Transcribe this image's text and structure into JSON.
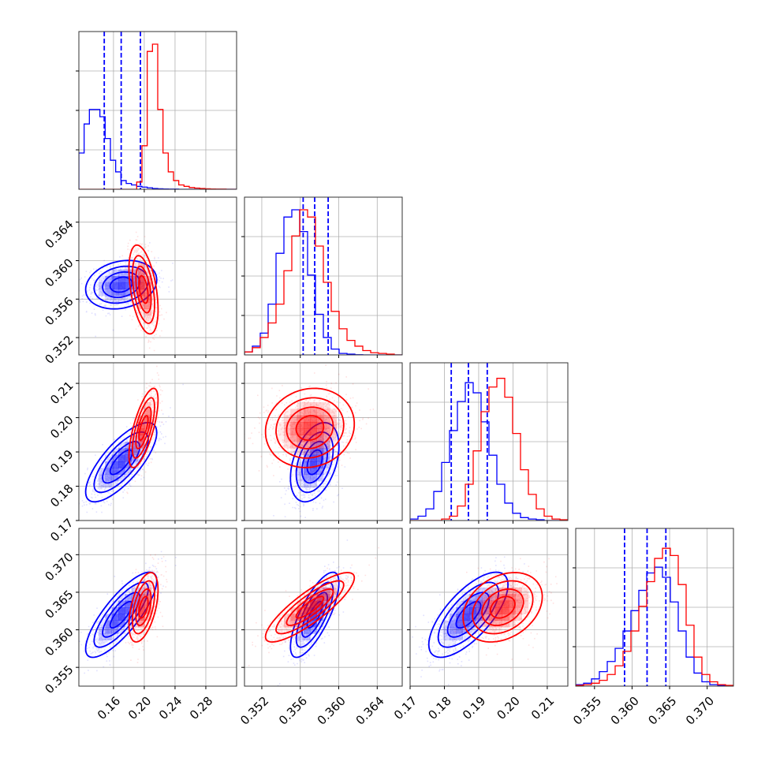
{
  "chart_data": {
    "type": "corner",
    "title": "",
    "grid": true,
    "params": [
      {
        "ticks": [
          0.16,
          0.2,
          0.24,
          0.28
        ],
        "tick_labels": [
          "0.16",
          "0.20",
          "0.24",
          "0.28"
        ],
        "range": [
          0.115,
          0.32
        ]
      },
      {
        "ticks": [
          0.352,
          0.356,
          0.36,
          0.364
        ],
        "tick_labels": [
          "0.352",
          "0.356",
          "0.360",
          "0.364"
        ],
        "range": [
          0.3502,
          0.3666
        ]
      },
      {
        "ticks": [
          0.17,
          0.18,
          0.19,
          0.2,
          0.21
        ],
        "tick_labels": [
          "0.17",
          "0.18",
          "0.19",
          "0.20",
          "0.21"
        ],
        "range": [
          0.17,
          0.216
        ]
      },
      {
        "ticks": [
          0.355,
          0.36,
          0.365,
          0.37
        ],
        "tick_labels": [
          "0.355",
          "0.360",
          "0.365",
          "0.370"
        ],
        "range": [
          0.3525,
          0.3735
        ]
      }
    ],
    "series": [
      {
        "color": "#0000ff",
        "means": [
          0.17,
          0.3575,
          0.187,
          0.362
        ],
        "sds": [
          0.022,
          0.0012,
          0.0055,
          0.0027
        ],
        "corr": [
          [
            1,
            0.2,
            0.75,
            0.8
          ],
          [
            0.2,
            1,
            0.4,
            0.75
          ],
          [
            0.75,
            0.4,
            1,
            0.7
          ],
          [
            0.8,
            0.75,
            0.7,
            1
          ]
        ],
        "quantiles": [
          [
            0.148,
            0.17,
            0.195
          ],
          [
            0.3563,
            0.3575,
            0.3589
          ],
          [
            0.182,
            0.187,
            0.1925
          ],
          [
            0.359,
            0.362,
            0.3645
          ]
        ],
        "hist_counts": [
          [
            0.25,
            0.45,
            0.55,
            0.55,
            0.5,
            0.35,
            0.2,
            0.12,
            0.06,
            0.04,
            0.03,
            0.02,
            0.015,
            0.01,
            0.005,
            0.003,
            0.002,
            0.001,
            0.001,
            0,
            0,
            0,
            0,
            0,
            0,
            0,
            0,
            0,
            0,
            0
          ],
          [
            0.02,
            0.06,
            0.15,
            0.35,
            0.7,
            0.95,
            1.0,
            0.85,
            0.55,
            0.28,
            0.12,
            0.04,
            0.01,
            0.005,
            0.001,
            0,
            0,
            0,
            0,
            0
          ],
          [
            0.01,
            0.03,
            0.08,
            0.2,
            0.4,
            0.62,
            0.82,
            0.95,
            0.88,
            0.68,
            0.45,
            0.25,
            0.12,
            0.05,
            0.02,
            0.01,
            0.005,
            0,
            0,
            0
          ],
          [
            0.01,
            0.02,
            0.05,
            0.1,
            0.17,
            0.26,
            0.38,
            0.52,
            0.66,
            0.78,
            0.82,
            0.75,
            0.58,
            0.38,
            0.2,
            0.09,
            0.03,
            0.01,
            0.005,
            0
          ]
        ],
        "hist_peak": [
          0.55,
          1.0,
          0.95,
          0.82
        ]
      },
      {
        "color": "#ff0000",
        "means": [
          0.199,
          0.357,
          0.197,
          0.363
        ],
        "sds": [
          0.009,
          0.0022,
          0.0055,
          0.0022
        ],
        "corr": [
          [
            1,
            -0.45,
            0.7,
            0.5
          ],
          [
            -0.45,
            1,
            0.1,
            0.85
          ],
          [
            0.7,
            0.1,
            1,
            0.3
          ],
          [
            0.5,
            0.85,
            0.3,
            1
          ]
        ],
        "hist_counts": [
          [
            0,
            0,
            0,
            0,
            0,
            0,
            0,
            0,
            0,
            0,
            0,
            0.05,
            0.3,
            0.95,
            1.0,
            0.55,
            0.25,
            0.12,
            0.06,
            0.03,
            0.02,
            0.012,
            0.008,
            0.005,
            0.003,
            0.002,
            0.001,
            0.001,
            0,
            0
          ],
          [
            0.02,
            0.05,
            0.12,
            0.22,
            0.35,
            0.58,
            0.82,
            1.0,
            0.95,
            0.75,
            0.5,
            0.3,
            0.18,
            0.1,
            0.06,
            0.03,
            0.015,
            0.01,
            0.005,
            0
          ],
          [
            0,
            0,
            0,
            0,
            0.01,
            0.03,
            0.1,
            0.25,
            0.48,
            0.75,
            0.92,
            0.98,
            0.85,
            0.6,
            0.35,
            0.18,
            0.08,
            0.03,
            0.01,
            0.005
          ],
          [
            0.005,
            0.01,
            0.02,
            0.04,
            0.08,
            0.14,
            0.24,
            0.38,
            0.55,
            0.72,
            0.88,
            0.95,
            0.9,
            0.7,
            0.42,
            0.2,
            0.08,
            0.03,
            0.01,
            0.005
          ]
        ],
        "hist_peak": [
          1.0,
          1.0,
          0.98,
          0.95
        ]
      }
    ]
  }
}
